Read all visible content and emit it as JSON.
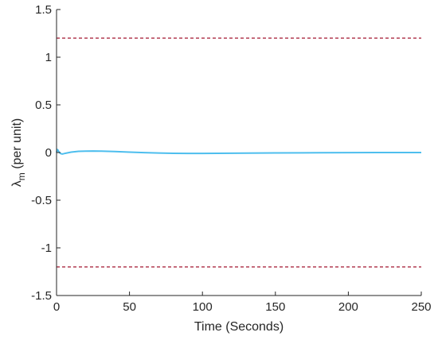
{
  "chart_data": {
    "type": "line",
    "title": "",
    "xlabel": "Time (Seconds)",
    "ylabel_symbol": "λ",
    "ylabel_subscript": "m",
    "ylabel_rest": " (per unit)",
    "xlim": [
      0,
      250
    ],
    "ylim": [
      -1.5,
      1.5
    ],
    "x_ticks": [
      0,
      50,
      100,
      150,
      200,
      250
    ],
    "y_ticks": [
      -1.5,
      -1,
      -0.5,
      0,
      0.5,
      1,
      1.5
    ],
    "x_tick_labels": [
      "0",
      "50",
      "100",
      "150",
      "200",
      "250"
    ],
    "y_tick_labels": [
      "-1.5",
      "-1",
      "-0.5",
      "0",
      "0.5",
      "1",
      "1.5"
    ],
    "grid": false,
    "series": [
      {
        "color": "#4DBEEE",
        "style": "solid",
        "x": [
          0,
          0.5,
          1,
          1.5,
          2,
          3,
          4,
          5,
          6,
          8,
          10,
          15,
          20,
          25,
          30,
          40,
          50,
          60,
          70,
          80,
          90,
          100,
          120,
          150,
          180,
          200,
          220,
          250
        ],
        "y": [
          0,
          0.03,
          0.025,
          0.01,
          0.0,
          -0.012,
          -0.015,
          -0.012,
          -0.008,
          -0.002,
          0.004,
          0.012,
          0.015,
          0.016,
          0.015,
          0.01,
          0.004,
          -0.001,
          -0.005,
          -0.008,
          -0.009,
          -0.009,
          -0.007,
          -0.004,
          -0.002,
          -0.001,
          0,
          0
        ]
      },
      {
        "color": "#A2142F",
        "style": "dashed",
        "x": [
          0,
          250
        ],
        "y": [
          1.2,
          1.2
        ]
      },
      {
        "color": "#A2142F",
        "style": "dashed",
        "x": [
          0,
          250
        ],
        "y": [
          -1.2,
          -1.2
        ]
      }
    ]
  }
}
